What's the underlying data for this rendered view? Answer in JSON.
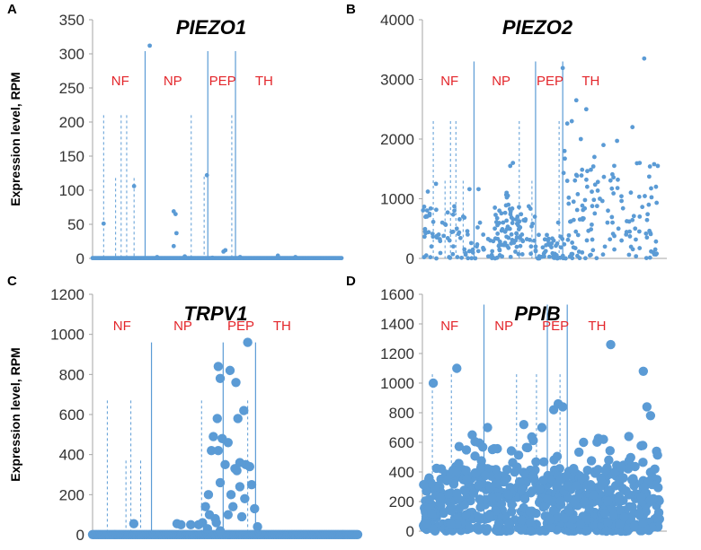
{
  "colors": {
    "point": "#5b9bd5",
    "axis": "#a6a6a6",
    "region_label": "#e3262b",
    "divider": "#5b9bd5"
  },
  "chart_data": [
    {
      "panel": "A",
      "type": "scatter",
      "title": "PIEZO1",
      "ylabel": "Expression level, RPM",
      "ylim": [
        0,
        350
      ],
      "yticks": [
        0,
        50,
        100,
        150,
        200,
        250,
        300,
        350
      ],
      "xlim": [
        0,
        270
      ],
      "regions": [
        {
          "label": "NF",
          "x": 30
        },
        {
          "label": "NP",
          "x": 87
        },
        {
          "label": "PEP",
          "x": 141
        },
        {
          "label": "TH",
          "x": 186
        }
      ],
      "dividers": [
        {
          "x": 57,
          "top": 304
        },
        {
          "x": 125,
          "top": 304
        },
        {
          "x": 155,
          "top": 304
        }
      ],
      "dashes": [
        {
          "x": 12,
          "top": 210
        },
        {
          "x": 31,
          "top": 210
        },
        {
          "x": 37,
          "top": 210
        },
        {
          "x": 25,
          "top": 118
        },
        {
          "x": 45,
          "top": 118
        },
        {
          "x": 107,
          "top": 210
        },
        {
          "x": 121,
          "top": 120
        },
        {
          "x": 151,
          "top": 210
        }
      ],
      "points": [
        [
          62,
          312
        ],
        [
          12,
          51
        ],
        [
          45,
          106
        ],
        [
          124,
          122
        ],
        [
          88,
          69
        ],
        [
          90,
          65
        ],
        [
          91,
          37
        ],
        [
          88,
          18
        ],
        [
          142,
          10
        ],
        [
          144,
          12
        ],
        [
          201,
          4
        ],
        [
          70,
          2
        ],
        [
          100,
          3
        ],
        [
          130,
          1
        ],
        [
          160,
          2
        ],
        [
          220,
          2
        ]
      ],
      "baseline_from": 0,
      "baseline_to": 270,
      "baseline_value": 0.5,
      "point_size": "small"
    },
    {
      "panel": "B",
      "type": "scatter",
      "title": "PIEZO2",
      "ylabel": "",
      "ylim": [
        0,
        4000
      ],
      "yticks": [
        0,
        1000,
        2000,
        3000,
        4000
      ],
      "xlim": [
        0,
        270
      ],
      "regions": [
        {
          "label": "NF",
          "x": 30
        },
        {
          "label": "NP",
          "x": 87
        },
        {
          "label": "PEP",
          "x": 141
        },
        {
          "label": "TH",
          "x": 186
        }
      ],
      "dividers": [
        {
          "x": 57,
          "top": 3300
        },
        {
          "x": 125,
          "top": 3300
        },
        {
          "x": 155,
          "top": 3300
        }
      ],
      "dashes": [
        {
          "x": 12,
          "top": 2300
        },
        {
          "x": 31,
          "top": 2300
        },
        {
          "x": 37,
          "top": 2300
        },
        {
          "x": 25,
          "top": 1300
        },
        {
          "x": 45,
          "top": 1300
        },
        {
          "x": 107,
          "top": 2300
        },
        {
          "x": 121,
          "top": 1300
        },
        {
          "x": 151,
          "top": 2300
        }
      ],
      "points": [
        [
          155,
          3190
        ],
        [
          245,
          3350
        ],
        [
          170,
          2650
        ],
        [
          160,
          2260
        ],
        [
          165,
          2300
        ],
        [
          181,
          2500
        ],
        [
          232,
          2200
        ],
        [
          215,
          1970
        ],
        [
          100,
          1600
        ],
        [
          97,
          1550
        ],
        [
          15,
          1250
        ],
        [
          6,
          1120
        ],
        [
          52,
          1160
        ],
        [
          62,
          1160
        ],
        [
          93,
          1100
        ],
        [
          175,
          2000
        ],
        [
          200,
          1900
        ],
        [
          190,
          1700
        ],
        [
          240,
          1600
        ],
        [
          260,
          1550
        ],
        [
          258,
          1200
        ],
        [
          250,
          900
        ],
        [
          240,
          700
        ],
        [
          235,
          500
        ],
        [
          225,
          400
        ],
        [
          210,
          600
        ],
        [
          205,
          800
        ],
        [
          196,
          1000
        ],
        [
          182,
          1200
        ],
        [
          170,
          1400
        ],
        [
          160,
          1300
        ],
        [
          150,
          600
        ],
        [
          145,
          300
        ],
        [
          135,
          100
        ],
        [
          120,
          200
        ],
        [
          110,
          400
        ],
        [
          105,
          700
        ],
        [
          95,
          900
        ],
        [
          85,
          800
        ],
        [
          80,
          500
        ],
        [
          75,
          300
        ],
        [
          68,
          150
        ],
        [
          60,
          200
        ],
        [
          50,
          400
        ],
        [
          45,
          700
        ],
        [
          38,
          500
        ],
        [
          30,
          300
        ],
        [
          22,
          600
        ],
        [
          18,
          400
        ],
        [
          10,
          200
        ],
        [
          5,
          700
        ],
        [
          3,
          450
        ],
        [
          255,
          100
        ],
        [
          248,
          350
        ],
        [
          220,
          300
        ],
        [
          212,
          150
        ],
        [
          185,
          50
        ],
        [
          177,
          650
        ],
        [
          167,
          950
        ],
        [
          157,
          1800
        ]
      ],
      "fill_regions": [
        {
          "from": 0,
          "to": 125,
          "min": 0,
          "max": 900,
          "count": 120
        },
        {
          "from": 80,
          "to": 108,
          "min": 200,
          "max": 1100,
          "count": 40
        },
        {
          "from": 125,
          "to": 155,
          "min": 0,
          "max": 400,
          "count": 40
        },
        {
          "from": 155,
          "to": 262,
          "min": 0,
          "max": 1800,
          "count": 120
        }
      ],
      "point_size": "small"
    },
    {
      "panel": "C",
      "type": "scatter",
      "title": "TRPV1",
      "ylabel": "Expression level, RPM",
      "ylim": [
        0,
        1200
      ],
      "yticks": [
        0,
        200,
        400,
        600,
        800,
        1000,
        1200
      ],
      "xlim": [
        0,
        270
      ],
      "regions": [
        {
          "label": "NF",
          "x": 30
        },
        {
          "label": "NP",
          "x": 92
        },
        {
          "label": "PEP",
          "x": 151
        },
        {
          "label": "TH",
          "x": 193
        }
      ],
      "dividers": [
        {
          "x": 60,
          "top": 960
        },
        {
          "x": 133,
          "top": 960
        },
        {
          "x": 166,
          "top": 960
        }
      ],
      "dashes": [
        {
          "x": 15,
          "top": 670
        },
        {
          "x": 39,
          "top": 670
        },
        {
          "x": 34,
          "top": 370
        },
        {
          "x": 49,
          "top": 370
        },
        {
          "x": 111,
          "top": 670
        },
        {
          "x": 158,
          "top": 670
        }
      ],
      "points": [
        [
          158,
          960
        ],
        [
          128,
          840
        ],
        [
          130,
          780
        ],
        [
          140,
          820
        ],
        [
          146,
          760
        ],
        [
          154,
          620
        ],
        [
          148,
          580
        ],
        [
          127,
          580
        ],
        [
          123,
          490
        ],
        [
          132,
          480
        ],
        [
          121,
          420
        ],
        [
          138,
          460
        ],
        [
          135,
          350
        ],
        [
          145,
          330
        ],
        [
          150,
          360
        ],
        [
          156,
          350
        ],
        [
          160,
          340
        ],
        [
          162,
          250
        ],
        [
          150,
          240
        ],
        [
          141,
          200
        ],
        [
          118,
          200
        ],
        [
          115,
          140
        ],
        [
          125,
          80
        ],
        [
          112,
          60
        ],
        [
          108,
          50
        ],
        [
          100,
          50
        ],
        [
          86,
          55
        ],
        [
          90,
          50
        ],
        [
          42,
          55
        ],
        [
          168,
          40
        ],
        [
          130,
          260
        ],
        [
          143,
          140
        ],
        [
          138,
          100
        ],
        [
          126,
          60
        ],
        [
          119,
          100
        ],
        [
          155,
          180
        ],
        [
          165,
          130
        ],
        [
          130,
          20
        ],
        [
          117,
          30
        ],
        [
          152,
          90
        ],
        [
          128,
          420
        ],
        [
          147,
          320
        ]
      ],
      "baseline_from": 0,
      "baseline_to": 270,
      "baseline_value": 1,
      "point_size": "large"
    },
    {
      "panel": "D",
      "type": "scatter",
      "title": "PPIB",
      "ylabel": "",
      "ylim": [
        0,
        1600
      ],
      "yticks": [
        0,
        200,
        400,
        600,
        800,
        1000,
        1200,
        1400,
        1600
      ],
      "xlim": [
        0,
        270
      ],
      "regions": [
        {
          "label": "NF",
          "x": 30
        },
        {
          "label": "NP",
          "x": 90
        },
        {
          "label": "PEP",
          "x": 147
        },
        {
          "label": "TH",
          "x": 193
        }
      ],
      "dividers": [
        {
          "x": 68,
          "top": 1530
        },
        {
          "x": 138,
          "top": 1530
        },
        {
          "x": 160,
          "top": 1530
        }
      ],
      "dashes": [
        {
          "x": 11,
          "top": 1060
        },
        {
          "x": 32,
          "top": 1060
        },
        {
          "x": 104,
          "top": 1060
        },
        {
          "x": 126,
          "top": 1060
        },
        {
          "x": 152,
          "top": 1060
        }
      ],
      "points": [
        [
          12,
          1000
        ],
        [
          38,
          1100
        ],
        [
          208,
          1260
        ],
        [
          244,
          1080
        ],
        [
          150,
          860
        ],
        [
          155,
          840
        ],
        [
          145,
          820
        ],
        [
          112,
          720
        ],
        [
          132,
          700
        ],
        [
          72,
          700
        ],
        [
          55,
          650
        ],
        [
          178,
          600
        ],
        [
          200,
          620
        ],
        [
          228,
          640
        ],
        [
          248,
          840
        ],
        [
          252,
          780
        ]
      ],
      "fill_regions": [
        {
          "from": 0,
          "to": 262,
          "min": 0,
          "max": 430,
          "count": 520
        },
        {
          "from": 0,
          "to": 262,
          "min": 200,
          "max": 650,
          "count": 140
        }
      ],
      "point_size": "large"
    }
  ]
}
